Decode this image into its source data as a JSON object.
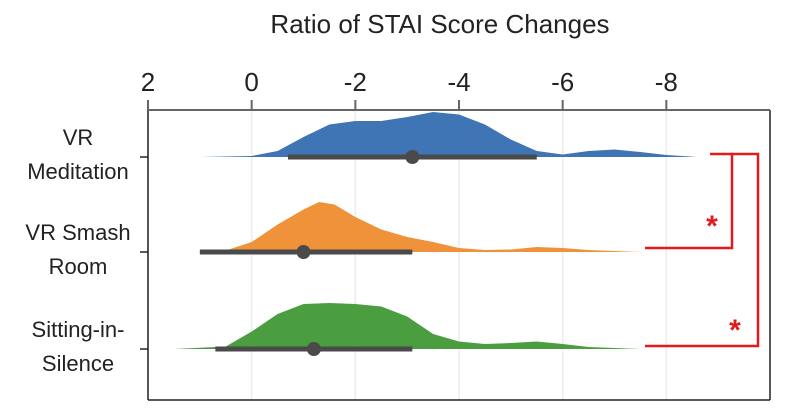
{
  "chart_data": {
    "type": "raincloud",
    "title": "Ratio of STAI Score Changes",
    "xlabel": "",
    "ylabel": "",
    "xlim": [
      2,
      -10
    ],
    "x_ticks": [
      2,
      0,
      -2,
      -4,
      -6,
      -8
    ],
    "x_tick_labels": [
      "2",
      "0",
      "-2",
      "-4",
      "-6",
      "-8"
    ],
    "grid": "vertical",
    "axis_position": "top",
    "categories": [
      {
        "line1": "VR",
        "line2": "Meditation",
        "color": "#3f74b5",
        "mean": -3.1,
        "interval": [
          -0.7,
          -5.5
        ],
        "density": [
          [
            1.0,
            0.0
          ],
          [
            0.0,
            0.02
          ],
          [
            -0.5,
            0.12
          ],
          [
            -1.0,
            0.4
          ],
          [
            -1.5,
            0.65
          ],
          [
            -2.0,
            0.72
          ],
          [
            -2.5,
            0.72
          ],
          [
            -3.0,
            0.8
          ],
          [
            -3.5,
            0.9
          ],
          [
            -4.0,
            0.85
          ],
          [
            -4.5,
            0.65
          ],
          [
            -5.0,
            0.35
          ],
          [
            -5.5,
            0.12
          ],
          [
            -6.0,
            0.05
          ],
          [
            -6.5,
            0.12
          ],
          [
            -7.0,
            0.15
          ],
          [
            -7.5,
            0.1
          ],
          [
            -8.0,
            0.04
          ],
          [
            -8.6,
            0.0
          ]
        ]
      },
      {
        "line1": "VR Smash",
        "line2": "Room",
        "color": "#f0923a",
        "mean": -1.0,
        "interval": [
          1.0,
          -3.1
        ],
        "density": [
          [
            1.0,
            0.0
          ],
          [
            0.5,
            0.03
          ],
          [
            0.0,
            0.2
          ],
          [
            -0.5,
            0.55
          ],
          [
            -1.0,
            0.85
          ],
          [
            -1.3,
            1.0
          ],
          [
            -1.6,
            0.95
          ],
          [
            -2.0,
            0.7
          ],
          [
            -2.5,
            0.45
          ],
          [
            -3.0,
            0.3
          ],
          [
            -3.5,
            0.2
          ],
          [
            -4.0,
            0.08
          ],
          [
            -4.5,
            0.04
          ],
          [
            -5.0,
            0.05
          ],
          [
            -5.5,
            0.1
          ],
          [
            -6.0,
            0.08
          ],
          [
            -6.5,
            0.04
          ],
          [
            -7.0,
            0.02
          ],
          [
            -7.5,
            0.0
          ]
        ]
      },
      {
        "line1": "Sitting-in-",
        "line2": "Silence",
        "color": "#4a9e3f",
        "mean": -1.2,
        "interval": [
          0.7,
          -3.1
        ],
        "density": [
          [
            1.5,
            0.0
          ],
          [
            0.5,
            0.05
          ],
          [
            0.0,
            0.35
          ],
          [
            -0.5,
            0.7
          ],
          [
            -1.0,
            0.9
          ],
          [
            -1.5,
            0.92
          ],
          [
            -2.0,
            0.9
          ],
          [
            -2.5,
            0.85
          ],
          [
            -3.0,
            0.65
          ],
          [
            -3.5,
            0.3
          ],
          [
            -4.0,
            0.15
          ],
          [
            -4.5,
            0.1
          ],
          [
            -5.0,
            0.12
          ],
          [
            -5.5,
            0.15
          ],
          [
            -6.0,
            0.1
          ],
          [
            -6.5,
            0.04
          ],
          [
            -7.0,
            0.02
          ],
          [
            -7.5,
            0.0
          ]
        ]
      }
    ],
    "significance": [
      {
        "from": 0,
        "to": 1,
        "label": "*",
        "color": "#e31a1c"
      },
      {
        "from": 0,
        "to": 2,
        "label": "*",
        "color": "#e31a1c"
      }
    ]
  }
}
